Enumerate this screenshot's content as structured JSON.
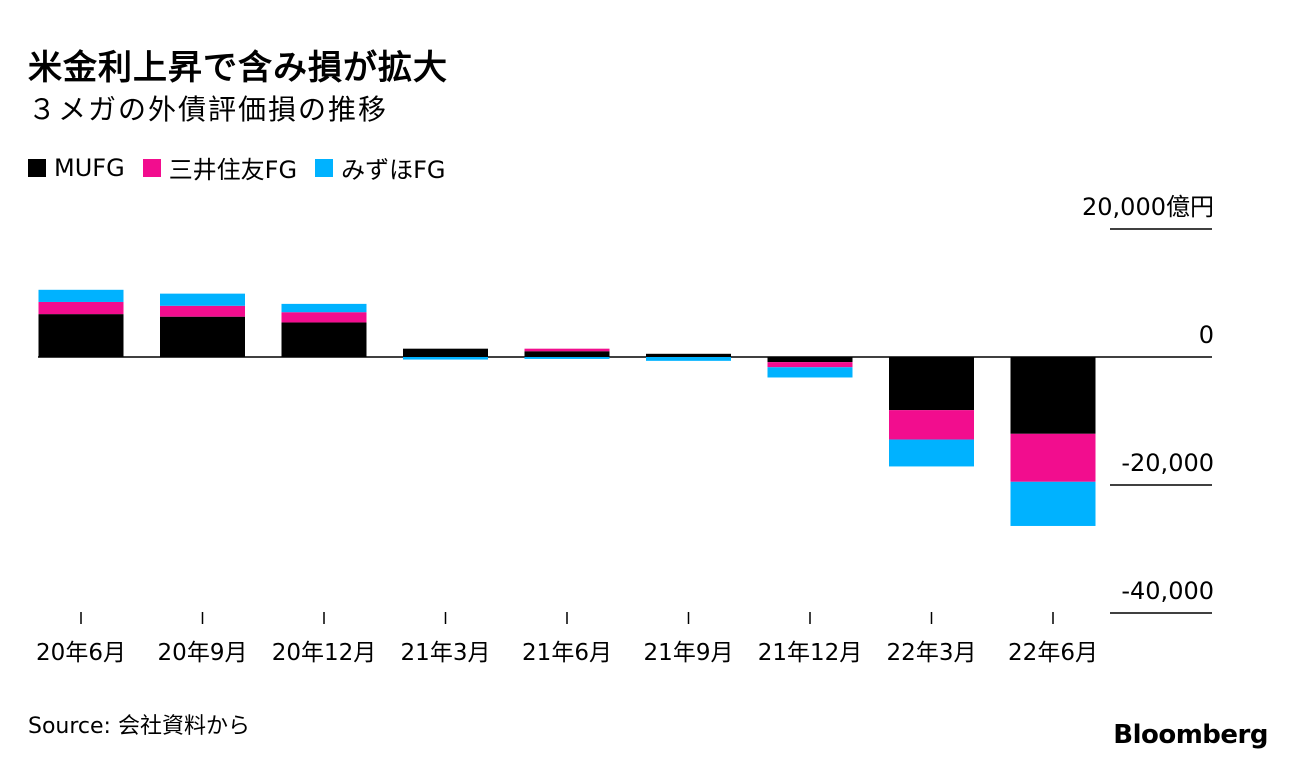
{
  "chart_data": {
    "type": "bar",
    "stacked": true,
    "title": "米金利上昇で含み損が拡大",
    "subtitle": "３メガの外債評価損の推移",
    "categories": [
      "20年6月",
      "20年9月",
      "20年12月",
      "21年3月",
      "21年6月",
      "21年9月",
      "21年12月",
      "22年3月",
      "22年6月"
    ],
    "series": [
      {
        "name": "MUFG",
        "color": "#000000",
        "values": [
          6700,
          6300,
          5400,
          1300,
          900,
          500,
          -800,
          -8300,
          -12000
        ]
      },
      {
        "name": "三井住友FG",
        "color": "#f20d8e",
        "values": [
          1900,
          1700,
          1600,
          0,
          400,
          0,
          -800,
          -4600,
          -7500
        ]
      },
      {
        "name": "みずほFG",
        "color": "#00b2ff",
        "values": [
          1900,
          1900,
          1300,
          -400,
          -300,
          -600,
          -1600,
          -4200,
          -6900
        ]
      }
    ],
    "ylim": [
      -40000,
      20000
    ],
    "yticks": [
      {
        "value": 20000,
        "label": "20,000億円"
      },
      {
        "value": 0,
        "label": "0"
      },
      {
        "value": -20000,
        "label": "-20,000"
      },
      {
        "value": -40000,
        "label": "-40,000"
      }
    ],
    "xlabel": "",
    "ylabel": ""
  },
  "footer": {
    "source": "Source: 会社資料から",
    "brand": "Bloomberg"
  }
}
